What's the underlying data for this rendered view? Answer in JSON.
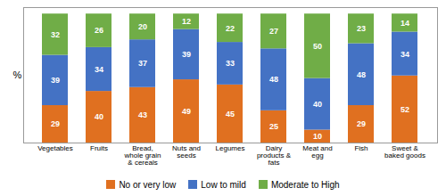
{
  "chart_data": {
    "type": "bar",
    "stacked": true,
    "data_labels": true,
    "categories": [
      "Vegetables",
      "Fruits",
      "Bread,\nwhole grain\n& cereals",
      "Nuts and\nseeds",
      "Legumes",
      "Dairy\nproducts &\nfats",
      "Meat and\negg",
      "Fish",
      "Sweet &\nbaked goods"
    ],
    "series": [
      {
        "name": "No or very low",
        "color": "#E07020",
        "values": [
          29,
          40,
          43,
          49,
          45,
          25,
          10,
          29,
          52
        ]
      },
      {
        "name": "Low to mild",
        "color": "#4472C4",
        "values": [
          39,
          34,
          37,
          39,
          33,
          48,
          40,
          48,
          34
        ]
      },
      {
        "name": "Moderate to High",
        "color": "#70AD47",
        "values": [
          32,
          26,
          20,
          12,
          22,
          27,
          50,
          23,
          14
        ]
      }
    ],
    "ylabel": "%",
    "ylim": [
      0,
      105
    ],
    "yticks": [],
    "grid": false,
    "legend": "bottom",
    "tick_labels": "x"
  }
}
